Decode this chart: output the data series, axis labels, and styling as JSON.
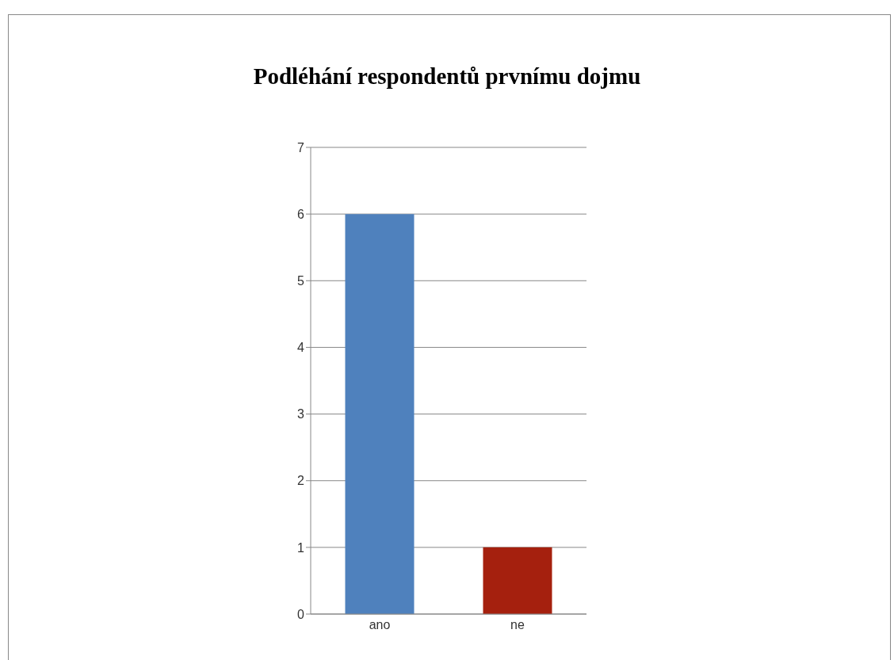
{
  "chart_data": {
    "type": "bar",
    "title": "Podléhání respondentů prvnímu dojmu",
    "categories": [
      "ano",
      "ne"
    ],
    "values": [
      6,
      1
    ],
    "colors": [
      "#4f81bd",
      "#a5200e"
    ],
    "ylim": [
      0,
      7
    ],
    "yticks": [
      0,
      1,
      2,
      3,
      4,
      5,
      6,
      7
    ],
    "grid": "y"
  }
}
